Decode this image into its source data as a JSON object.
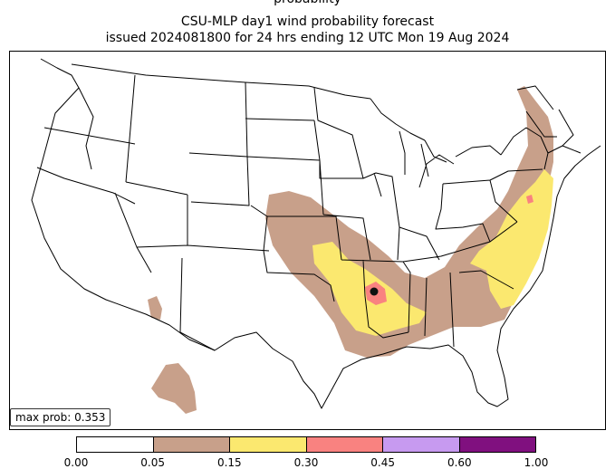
{
  "title": {
    "line0": "probability",
    "line1": "CSU-MLP day1 wind probability forecast",
    "line2": "issued 2024081800 for 24 hrs ending 12 UTC Mon 19 Aug 2024"
  },
  "max_prob_label": "max prob: 0.353",
  "colorbar": {
    "ticks": [
      "0.00",
      "0.05",
      "0.15",
      "0.30",
      "0.45",
      "0.60",
      "1.00"
    ],
    "colors": [
      "#ffffff",
      "#c8a08a",
      "#fbe86f",
      "#f98280",
      "#c79af0",
      "#80107f"
    ]
  },
  "map": {
    "region": "CONUS",
    "colors": {
      "tan": "#c8a08a",
      "yellow": "#fbe86f",
      "red": "#f98280",
      "marker": "#111111"
    }
  }
}
